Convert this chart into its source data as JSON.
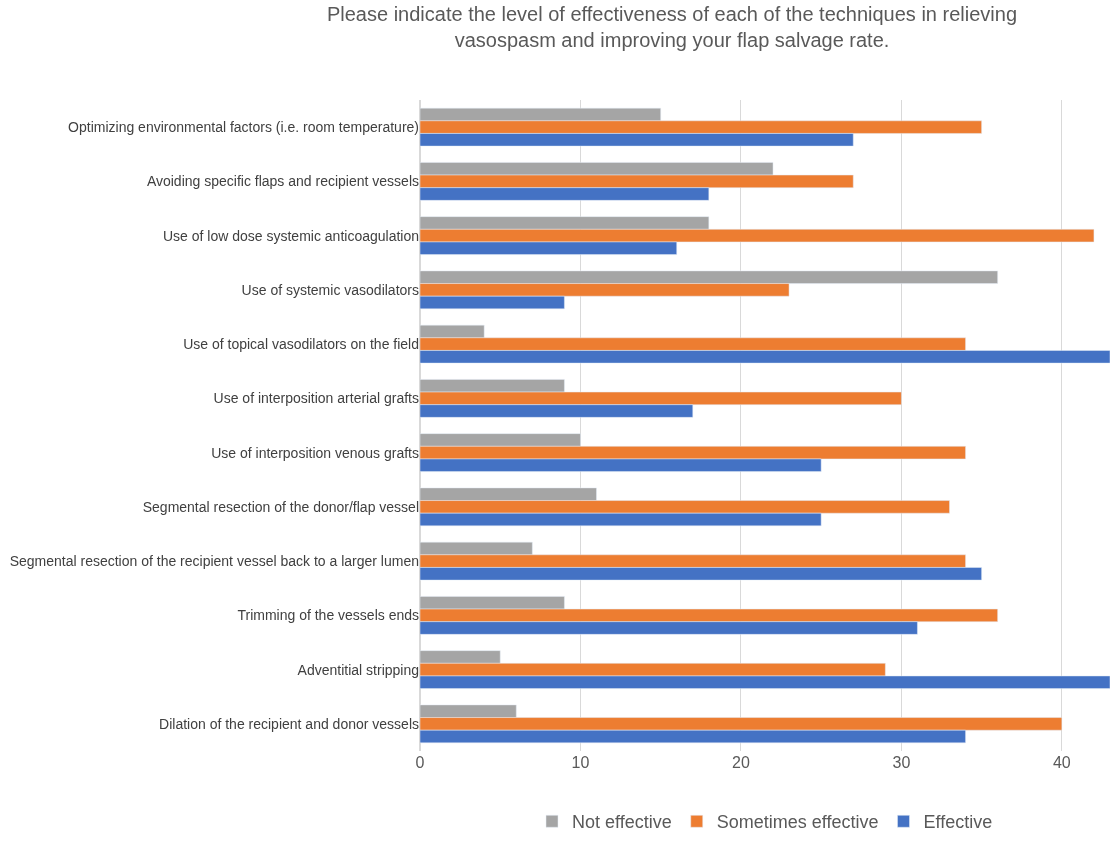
{
  "chart_data": {
    "type": "bar",
    "orientation": "horizontal",
    "title": "Please indicate the level of effectiveness of each of the techniques in relieving vasospasm and improving your flap salvage rate.",
    "categories": [
      "Optimizing environmental factors (i.e. room temperature)",
      "Avoiding specific flaps and recipient vessels",
      "Use of low dose systemic anticoagulation",
      "Use of systemic vasodilators",
      "Use of topical vasodilators on the field",
      "Use of interposition arterial grafts",
      "Use of interposition venous grafts",
      "Segmental resection of the donor/flap vessel",
      "Segmental resection of the recipient vessel back to a larger lumen",
      "Trimming of the vessels ends",
      "Adventitial stripping",
      "Dilation of the recipient and donor vessels"
    ],
    "series": [
      {
        "name": "Not effective",
        "color": "#a5a5a5",
        "values": [
          15,
          22,
          18,
          36,
          4,
          9,
          10,
          11,
          7,
          9,
          5,
          6
        ]
      },
      {
        "name": "Sometimes effective",
        "color": "#ed7d31",
        "values": [
          35,
          27,
          42,
          23,
          34,
          30,
          34,
          33,
          34,
          36,
          29,
          40
        ]
      },
      {
        "name": "Effective",
        "color": "#4472c4",
        "values": [
          27,
          18,
          16,
          9,
          43,
          17,
          25,
          25,
          35,
          31,
          43,
          34
        ]
      }
    ],
    "xlim": [
      0,
      43
    ],
    "xticks": [
      0,
      10,
      20,
      30,
      40
    ],
    "grid": "x",
    "legend": "bottom"
  }
}
